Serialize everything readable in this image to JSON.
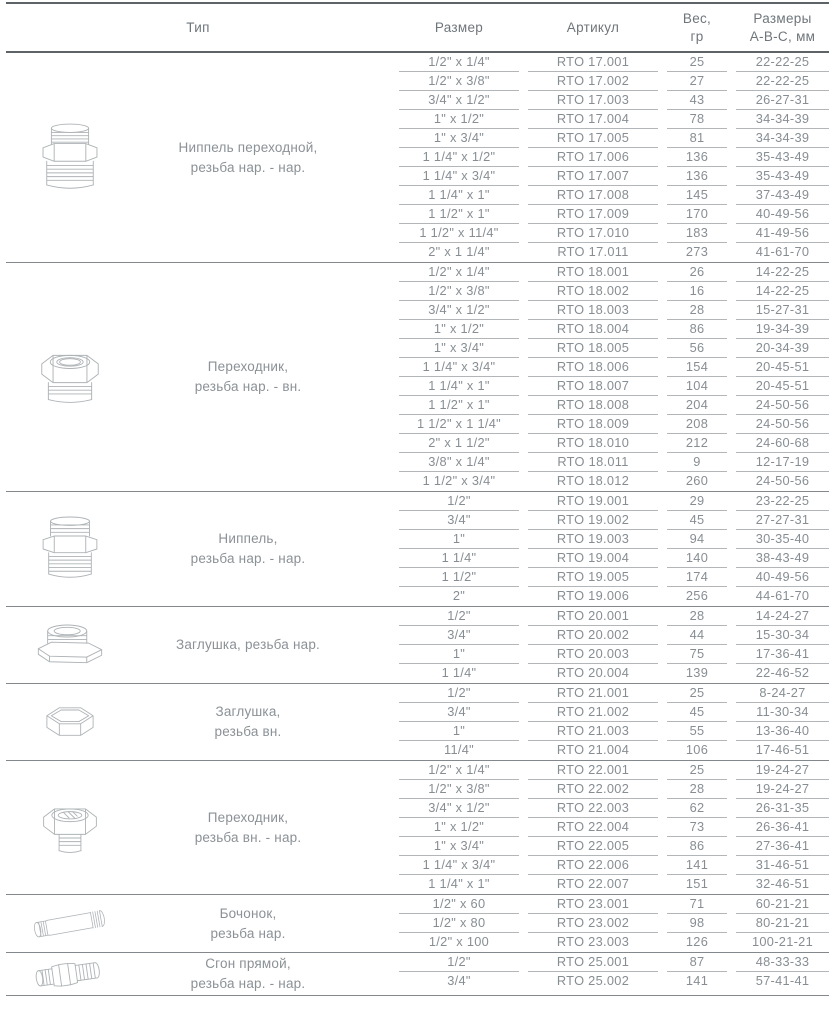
{
  "colors": {
    "background": "#ffffff",
    "text": "#878e93",
    "header_text": "#6f767b",
    "type_label_text": "#8b9196",
    "row_line": "#b2b6b9",
    "section_line": "#82888b",
    "frame_line": "#5d6367"
  },
  "table": {
    "header": {
      "type": "Тип",
      "size": "Размер",
      "article": "Артикул",
      "weight_line1": "Вес,",
      "weight_line2": "гр",
      "dims_line1": "Размеры",
      "dims_line2": "А-В-С, мм"
    },
    "sections": [
      {
        "type_lines": [
          "Ниппель переходной,",
          "резьба нар. - нар."
        ],
        "icon": "reducing-nipple-image",
        "rows": [
          {
            "size": "1/2\" x 1/4\"",
            "article": "RTO 17.001",
            "weight": "25",
            "dimensions": "22-22-25"
          },
          {
            "size": "1/2\" x 3/8\"",
            "article": "RTO 17.002",
            "weight": "27",
            "dimensions": "22-22-25"
          },
          {
            "size": "3/4\" x 1/2\"",
            "article": "RTO 17.003",
            "weight": "43",
            "dimensions": "26-27-31"
          },
          {
            "size": "1\" x 1/2\"",
            "article": "RTO 17.004",
            "weight": "78",
            "dimensions": "34-34-39"
          },
          {
            "size": "1\" x 3/4\"",
            "article": "RTO 17.005",
            "weight": "81",
            "dimensions": "34-34-39"
          },
          {
            "size": "1 1/4\" x 1/2\"",
            "article": "RTO 17.006",
            "weight": "136",
            "dimensions": "35-43-49"
          },
          {
            "size": "1 1/4\" x 3/4\"",
            "article": "RTO 17.007",
            "weight": "136",
            "dimensions": "35-43-49"
          },
          {
            "size": "1 1/4\" x 1\"",
            "article": "RTO 17.008",
            "weight": "145",
            "dimensions": "37-43-49"
          },
          {
            "size": "1 1/2\" x 1\"",
            "article": "RTO 17.009",
            "weight": "170",
            "dimensions": "40-49-56"
          },
          {
            "size": "1 1/2\" x 11/4\"",
            "article": "RTO 17.010",
            "weight": "183",
            "dimensions": "41-49-56"
          },
          {
            "size": "2\" x 1 1/4\"",
            "article": "RTO 17.011",
            "weight": "273",
            "dimensions": "41-61-70"
          }
        ]
      },
      {
        "type_lines": [
          "Переходник,",
          "резьба нар. - вн."
        ],
        "icon": "bushing-male-female-image",
        "rows": [
          {
            "size": "1/2\" x 1/4\"",
            "article": "RTO 18.001",
            "weight": "26",
            "dimensions": "14-22-25"
          },
          {
            "size": "1/2\" x 3/8\"",
            "article": "RTO 18.002",
            "weight": "16",
            "dimensions": "14-22-25"
          },
          {
            "size": "3/4\" x 1/2\"",
            "article": "RTO 18.003",
            "weight": "28",
            "dimensions": "15-27-31"
          },
          {
            "size": "1\" x 1/2\"",
            "article": "RTO 18.004",
            "weight": "86",
            "dimensions": "19-34-39"
          },
          {
            "size": "1\" x 3/4\"",
            "article": "RTO 18.005",
            "weight": "56",
            "dimensions": "20-34-39"
          },
          {
            "size": "1 1/4\" x 3/4\"",
            "article": "RTO 18.006",
            "weight": "154",
            "dimensions": "20-45-51"
          },
          {
            "size": "1 1/4\" x 1\"",
            "article": "RTO 18.007",
            "weight": "104",
            "dimensions": "20-45-51"
          },
          {
            "size": "1 1/2\" x 1\"",
            "article": "RTO 18.008",
            "weight": "204",
            "dimensions": "24-50-56"
          },
          {
            "size": "1 1/2\" x 1 1/4\"",
            "article": "RTO 18.009",
            "weight": "208",
            "dimensions": "24-50-56"
          },
          {
            "size": "2\" x 1 1/2\"",
            "article": "RTO 18.010",
            "weight": "212",
            "dimensions": "24-60-68"
          },
          {
            "size": "3/8\" x 1/4\"",
            "article": "RTO 18.011",
            "weight": "9",
            "dimensions": "12-17-19"
          },
          {
            "size": "1 1/2\" x 3/4\"",
            "article": "RTO 18.012",
            "weight": "260",
            "dimensions": "24-50-56"
          }
        ]
      },
      {
        "type_lines": [
          "Ниппель,",
          "резьба нар. - нар."
        ],
        "icon": "nipple-image",
        "rows": [
          {
            "size": "1/2\"",
            "article": "RTO 19.001",
            "weight": "29",
            "dimensions": "23-22-25"
          },
          {
            "size": "3/4\"",
            "article": "RTO 19.002",
            "weight": "45",
            "dimensions": "27-27-31"
          },
          {
            "size": "1\"",
            "article": "RTO 19.003",
            "weight": "94",
            "dimensions": "30-35-40"
          },
          {
            "size": "1 1/4\"",
            "article": "RTO 19.004",
            "weight": "140",
            "dimensions": "38-43-49"
          },
          {
            "size": "1 1/2\"",
            "article": "RTO 19.005",
            "weight": "174",
            "dimensions": "40-49-56"
          },
          {
            "size": "2\"",
            "article": "RTO 19.006",
            "weight": "256",
            "dimensions": "44-61-70"
          }
        ]
      },
      {
        "type_lines": [
          "Заглушка, резьба нар."
        ],
        "icon": "plug-male-image",
        "rows": [
          {
            "size": "1/2\"",
            "article": "RTO 20.001",
            "weight": "28",
            "dimensions": "14-24-27"
          },
          {
            "size": "3/4\"",
            "article": "RTO 20.002",
            "weight": "44",
            "dimensions": "15-30-34"
          },
          {
            "size": "1\"",
            "article": "RTO 20.003",
            "weight": "75",
            "dimensions": "17-36-41"
          },
          {
            "size": "1 1/4\"",
            "article": "RTO 20.004",
            "weight": "139",
            "dimensions": "22-46-52"
          }
        ]
      },
      {
        "type_lines": [
          "Заглушка,",
          "резьба вн."
        ],
        "icon": "cap-female-image",
        "rows": [
          {
            "size": "1/2\"",
            "article": "RTO 21.001",
            "weight": "25",
            "dimensions": "8-24-27"
          },
          {
            "size": "3/4\"",
            "article": "RTO 21.002",
            "weight": "45",
            "dimensions": "11-30-34"
          },
          {
            "size": "1\"",
            "article": "RTO 21.003",
            "weight": "55",
            "dimensions": "13-36-40"
          },
          {
            "size": "11/4\"",
            "article": "RTO 21.004",
            "weight": "106",
            "dimensions": "17-46-51"
          }
        ]
      },
      {
        "type_lines": [
          "Переходник,",
          "резьба вн. - нар."
        ],
        "icon": "adapter-female-male-image",
        "rows": [
          {
            "size": "1/2\" x 1/4\"",
            "article": "RTO 22.001",
            "weight": "25",
            "dimensions": "19-24-27"
          },
          {
            "size": "1/2\" x 3/8\"",
            "article": "RTO 22.002",
            "weight": "28",
            "dimensions": "19-24-27"
          },
          {
            "size": "3/4\" x 1/2\"",
            "article": "RTO 22.003",
            "weight": "62",
            "dimensions": "26-31-35"
          },
          {
            "size": "1\" x 1/2\"",
            "article": "RTO 22.004",
            "weight": "73",
            "dimensions": "26-36-41"
          },
          {
            "size": "1\" x 3/4\"",
            "article": "RTO 22.005",
            "weight": "86",
            "dimensions": "27-36-41"
          },
          {
            "size": "1 1/4\" x 3/4\"",
            "article": "RTO 22.006",
            "weight": "141",
            "dimensions": "31-46-51"
          },
          {
            "size": "1 1/4\" x 1\"",
            "article": "RTO 22.007",
            "weight": "151",
            "dimensions": "32-46-51"
          }
        ]
      },
      {
        "type_lines": [
          "Бочонок,",
          "резьба нар."
        ],
        "icon": "barrel-nipple-image",
        "rows": [
          {
            "size": "1/2\" x 60",
            "article": "RTO 23.001",
            "weight": "71",
            "dimensions": "60-21-21"
          },
          {
            "size": "1/2\" x 80",
            "article": "RTO 23.002",
            "weight": "98",
            "dimensions": "80-21-21"
          },
          {
            "size": "1/2\" x 100",
            "article": "RTO 23.003",
            "weight": "126",
            "dimensions": "100-21-21"
          }
        ]
      },
      {
        "type_lines": [
          "Сгон прямой,",
          "резьба нар. - нар."
        ],
        "icon": "union-nipple-image",
        "rows": [
          {
            "size": "1/2\"",
            "article": "RTO 25.001",
            "weight": "87",
            "dimensions": "48-33-33"
          },
          {
            "size": "3/4\"",
            "article": "RTO 25.002",
            "weight": "141",
            "dimensions": "57-41-41"
          }
        ]
      }
    ]
  }
}
